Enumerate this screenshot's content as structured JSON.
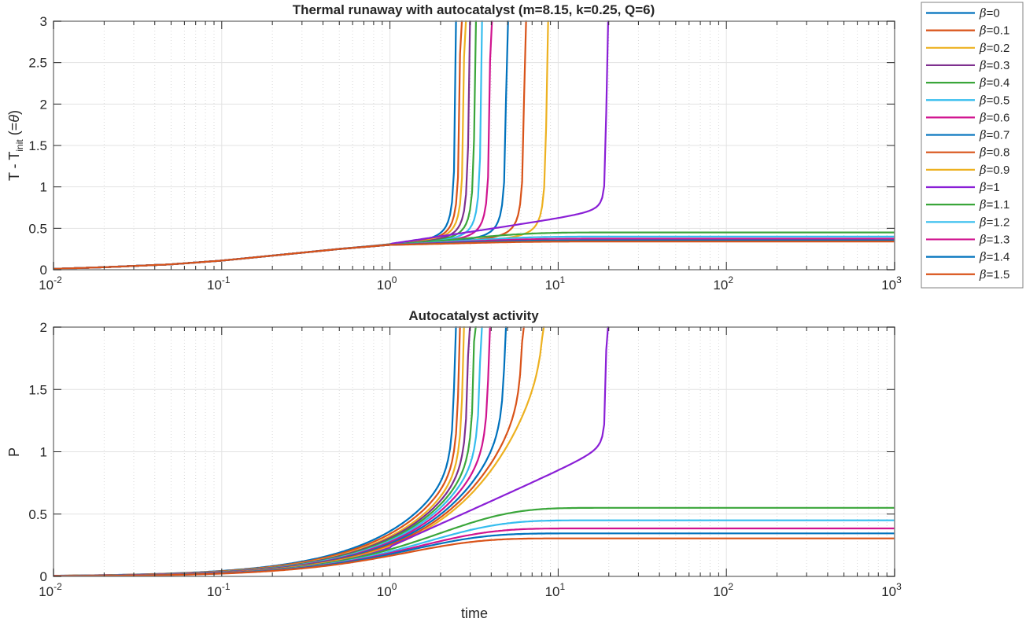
{
  "chart_data": [
    {
      "type": "line",
      "title": "Thermal runaway with autocatalyst (m=8.15, k=0.25, Q=6)",
      "xlabel": "",
      "ylabel": "T - T_init (=θ)",
      "ylabel_parts": {
        "main": "T - T",
        "sub": "init",
        "tail": " (=",
        "symbol": "θ",
        "close": ")"
      },
      "xscale": "log",
      "xlim": [
        0.01,
        1000
      ],
      "ylim": [
        0,
        3
      ],
      "xticks": [
        {
          "base": "10",
          "exp": "-2",
          "value": 0.01
        },
        {
          "base": "10",
          "exp": "-1",
          "value": 0.1
        },
        {
          "base": "10",
          "exp": "0",
          "value": 1
        },
        {
          "base": "10",
          "exp": "1",
          "value": 10
        },
        {
          "base": "10",
          "exp": "2",
          "value": 100
        },
        {
          "base": "10",
          "exp": "3",
          "value": 1000
        }
      ],
      "yticks": [
        "0",
        "0.5",
        "1",
        "1.5",
        "2",
        "2.5",
        "3"
      ],
      "ytick_values": [
        0,
        0.5,
        1,
        1.5,
        2,
        2.5,
        3
      ],
      "grid": true,
      "common_curve": {
        "x": [
          0.01,
          0.02,
          0.05,
          0.1,
          0.2,
          0.5,
          1.0
        ],
        "y": [
          0.01,
          0.03,
          0.065,
          0.11,
          0.17,
          0.25,
          0.3
        ]
      },
      "series": [
        {
          "name": "β=0",
          "runaway_time": 2.5,
          "plateau": null
        },
        {
          "name": "β=0.1",
          "runaway_time": 2.65,
          "plateau": null
        },
        {
          "name": "β=0.2",
          "runaway_time": 2.8,
          "plateau": null
        },
        {
          "name": "β=0.3",
          "runaway_time": 3.0,
          "plateau": null
        },
        {
          "name": "β=0.4",
          "runaway_time": 3.25,
          "plateau": null
        },
        {
          "name": "β=0.5",
          "runaway_time": 3.55,
          "plateau": null
        },
        {
          "name": "β=0.6",
          "runaway_time": 4.0,
          "plateau": null
        },
        {
          "name": "β=0.7",
          "runaway_time": 5.0,
          "plateau": null
        },
        {
          "name": "β=0.8",
          "runaway_time": 6.4,
          "plateau": null
        },
        {
          "name": "β=0.9",
          "runaway_time": 8.7,
          "plateau": null
        },
        {
          "name": "β=1",
          "runaway_time": 19.5,
          "plateau": null
        },
        {
          "name": "β=1.1",
          "runaway_time": null,
          "plateau": 0.45
        },
        {
          "name": "β=1.2",
          "runaway_time": null,
          "plateau": 0.4
        },
        {
          "name": "β=1.3",
          "runaway_time": null,
          "plateau": 0.375
        },
        {
          "name": "β=1.4",
          "runaway_time": null,
          "plateau": 0.355
        },
        {
          "name": "β=1.5",
          "runaway_time": null,
          "plateau": 0.34
        }
      ]
    },
    {
      "type": "line",
      "title": "Autocatalyst activity",
      "xlabel": "time",
      "ylabel": "P",
      "xscale": "log",
      "xlim": [
        0.01,
        1000
      ],
      "ylim": [
        0,
        2
      ],
      "xticks": [
        {
          "base": "10",
          "exp": "-2",
          "value": 0.01
        },
        {
          "base": "10",
          "exp": "-1",
          "value": 0.1
        },
        {
          "base": "10",
          "exp": "0",
          "value": 1
        },
        {
          "base": "10",
          "exp": "1",
          "value": 10
        },
        {
          "base": "10",
          "exp": "2",
          "value": 100
        },
        {
          "base": "10",
          "exp": "3",
          "value": 1000
        }
      ],
      "yticks": [
        "0",
        "0.5",
        "1",
        "1.5",
        "2"
      ],
      "ytick_values": [
        0,
        0.5,
        1,
        1.5,
        2
      ],
      "grid": true,
      "series": [
        {
          "name": "β=0",
          "value_at_t1": 0.35,
          "runaway_time": 2.5,
          "plateau": null
        },
        {
          "name": "β=0.1",
          "value_at_t1": 0.33,
          "runaway_time": 2.65,
          "plateau": null
        },
        {
          "name": "β=0.2",
          "value_at_t1": 0.31,
          "runaway_time": 2.8,
          "plateau": null
        },
        {
          "name": "β=0.3",
          "value_at_t1": 0.3,
          "runaway_time": 3.0,
          "plateau": null
        },
        {
          "name": "β=0.4",
          "value_at_t1": 0.29,
          "runaway_time": 3.25,
          "plateau": null
        },
        {
          "name": "β=0.5",
          "value_at_t1": 0.28,
          "runaway_time": 3.55,
          "plateau": null
        },
        {
          "name": "β=0.6",
          "value_at_t1": 0.27,
          "runaway_time": 4.0,
          "plateau": null
        },
        {
          "name": "β=0.7",
          "value_at_t1": 0.26,
          "runaway_time": 5.0,
          "plateau": null
        },
        {
          "name": "β=0.8",
          "value_at_t1": 0.25,
          "runaway_time": 6.4,
          "plateau": null
        },
        {
          "name": "β=0.9",
          "value_at_t1": 0.24,
          "runaway_time": 8.7,
          "plateau": null
        },
        {
          "name": "β=1",
          "value_at_t1": 0.23,
          "runaway_time": 19.5,
          "plateau": null
        },
        {
          "name": "β=1.1",
          "value_at_t1": 0.22,
          "runaway_time": null,
          "plateau": 0.55
        },
        {
          "name": "β=1.2",
          "value_at_t1": 0.21,
          "runaway_time": null,
          "plateau": 0.45
        },
        {
          "name": "β=1.3",
          "value_at_t1": 0.205,
          "runaway_time": null,
          "plateau": 0.385
        },
        {
          "name": "β=1.4",
          "value_at_t1": 0.2,
          "runaway_time": null,
          "plateau": 0.345
        },
        {
          "name": "β=1.5",
          "value_at_t1": 0.19,
          "runaway_time": null,
          "plateau": 0.305
        }
      ]
    }
  ],
  "legend": {
    "placement": "outside-top-right",
    "entries": [
      {
        "beta": "β",
        "label": "=0",
        "color": "#0072BD"
      },
      {
        "beta": "β",
        "label": "=0.1",
        "color": "#D95319"
      },
      {
        "beta": "β",
        "label": "=0.2",
        "color": "#EDB120"
      },
      {
        "beta": "β",
        "label": "=0.3",
        "color": "#7E2F8E"
      },
      {
        "beta": "β",
        "label": "=0.4",
        "color": "#3AA63A"
      },
      {
        "beta": "β",
        "label": "=0.5",
        "color": "#35BDEE"
      },
      {
        "beta": "β",
        "label": "=0.6",
        "color": "#D0148F"
      },
      {
        "beta": "β",
        "label": "=0.7",
        "color": "#0072BD"
      },
      {
        "beta": "β",
        "label": "=0.8",
        "color": "#D95319"
      },
      {
        "beta": "β",
        "label": "=0.9",
        "color": "#EDB120"
      },
      {
        "beta": "β",
        "label": "=1",
        "color": "#8A1FD6"
      },
      {
        "beta": "β",
        "label": "=1.1",
        "color": "#3AA63A"
      },
      {
        "beta": "β",
        "label": "=1.2",
        "color": "#35BDEE"
      },
      {
        "beta": "β",
        "label": "=1.3",
        "color": "#D0148F"
      },
      {
        "beta": "β",
        "label": "=1.4",
        "color": "#0072BD"
      },
      {
        "beta": "β",
        "label": "=1.5",
        "color": "#D95319"
      }
    ]
  },
  "colors": {
    "axis": "#808080",
    "grid": "#e3e3e3",
    "text": "#262626"
  }
}
